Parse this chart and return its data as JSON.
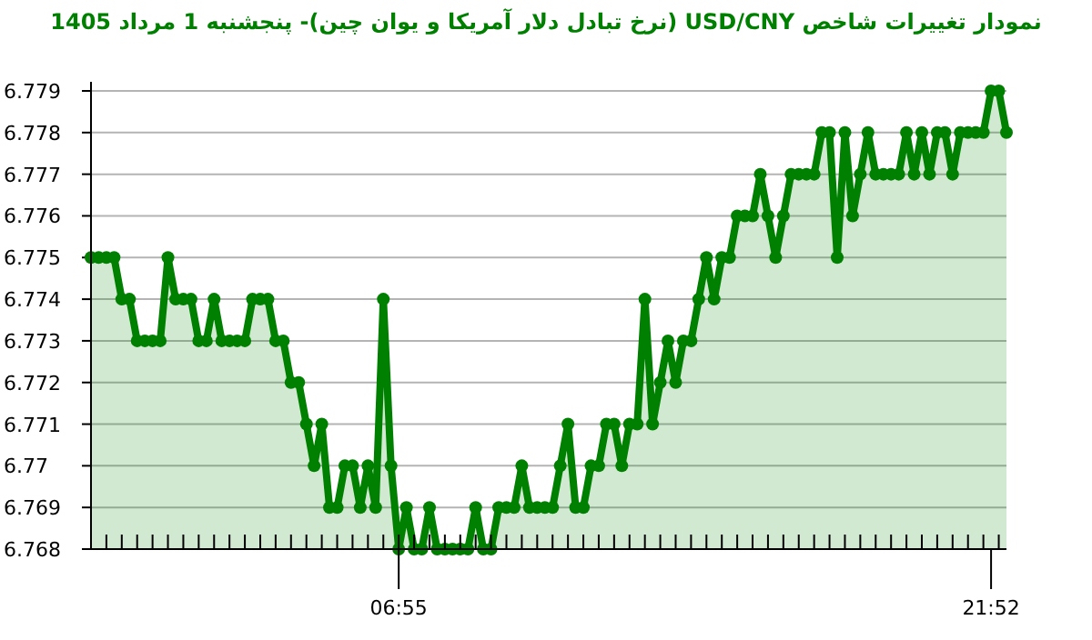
{
  "chart_data": {
    "type": "area",
    "title": "نمودار تغییرات شاخص USD/CNY (نرخ تبادل دلار آمریکا و یوان چین)- پنجشنبه 1 مرداد 1405",
    "categories": [
      null,
      null,
      null,
      null,
      null,
      null,
      null,
      null,
      null,
      null,
      null,
      null,
      null,
      null,
      null,
      null,
      null,
      null,
      null,
      null,
      null,
      null,
      null,
      null,
      null,
      null,
      null,
      null,
      null,
      null,
      null,
      null,
      null,
      null,
      null,
      null,
      null,
      null,
      null,
      null,
      "06:55",
      null,
      null,
      null,
      null,
      null,
      null,
      null,
      null,
      null,
      null,
      null,
      null,
      null,
      null,
      null,
      null,
      null,
      null,
      null,
      null,
      null,
      null,
      null,
      null,
      null,
      null,
      null,
      null,
      null,
      null,
      null,
      null,
      null,
      null,
      null,
      null,
      null,
      null,
      null,
      null,
      null,
      null,
      null,
      null,
      null,
      null,
      null,
      null,
      null,
      null,
      null,
      null,
      null,
      null,
      null,
      null,
      null,
      null,
      null,
      null,
      null,
      null,
      null,
      null,
      null,
      null,
      null,
      null,
      null,
      null,
      null,
      null,
      null,
      null,
      null,
      null,
      "21:52",
      null,
      null
    ],
    "series": [
      {
        "color": "#008000",
        "values": [
          6.775,
          6.775,
          6.775,
          6.775,
          6.774,
          6.774,
          6.773,
          6.773,
          6.773,
          6.773,
          6.775,
          6.774,
          6.774,
          6.774,
          6.773,
          6.773,
          6.774,
          6.773,
          6.773,
          6.773,
          6.773,
          6.774,
          6.774,
          6.774,
          6.773,
          6.773,
          6.772,
          6.772,
          6.771,
          6.77,
          6.771,
          6.769,
          6.769,
          6.77,
          6.77,
          6.769,
          6.77,
          6.769,
          6.774,
          6.77,
          6.768,
          6.769,
          6.768,
          6.768,
          6.769,
          6.768,
          6.768,
          6.768,
          6.768,
          6.768,
          6.769,
          6.768,
          6.768,
          6.769,
          6.769,
          6.769,
          6.77,
          6.769,
          6.769,
          6.769,
          6.769,
          6.77,
          6.771,
          6.769,
          6.769,
          6.77,
          6.77,
          6.771,
          6.771,
          6.77,
          6.771,
          6.771,
          6.774,
          6.771,
          6.772,
          6.773,
          6.772,
          6.773,
          6.773,
          6.774,
          6.775,
          6.774,
          6.775,
          6.775,
          6.776,
          6.776,
          6.776,
          6.777,
          6.776,
          6.775,
          6.776,
          6.777,
          6.777,
          6.777,
          6.777,
          6.778,
          6.778,
          6.775,
          6.778,
          6.776,
          6.777,
          6.778,
          6.777,
          6.777,
          6.777,
          6.777,
          6.778,
          6.777,
          6.778,
          6.777,
          6.778,
          6.778,
          6.777,
          6.778,
          6.778,
          6.778,
          6.778,
          6.779,
          6.779,
          6.778
        ]
      }
    ],
    "ylim": [
      6.768,
      6.779
    ],
    "yticks": [
      6.768,
      6.769,
      6.77,
      6.771,
      6.772,
      6.773,
      6.774,
      6.775,
      6.776,
      6.777,
      6.778,
      6.779
    ],
    "grid": "y",
    "marker": "circle",
    "line_style": "solid"
  }
}
